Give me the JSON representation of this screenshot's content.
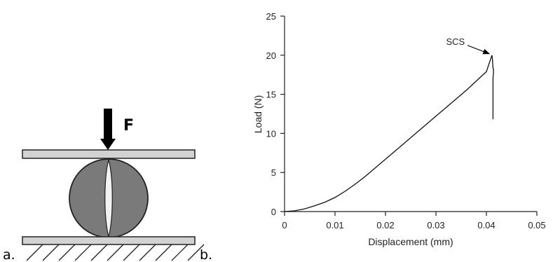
{
  "figure": {
    "panel_a_label": "a.",
    "panel_b_label": "b.",
    "force_label": "F"
  },
  "chart_data": {
    "type": "line",
    "xlabel": "Displacement (mm)",
    "ylabel": "Load (N)",
    "xlim": [
      0,
      0.05
    ],
    "ylim": [
      0,
      25
    ],
    "x_ticks": [
      0,
      0.01,
      0.02,
      0.03,
      0.04,
      0.05
    ],
    "x_tick_labels": [
      "0",
      "0.01",
      "0.02",
      "0.03",
      "0.04",
      "0.05"
    ],
    "y_ticks": [
      0,
      5,
      10,
      15,
      20,
      25
    ],
    "y_tick_labels": [
      "0",
      "5",
      "10",
      "15",
      "20",
      "25"
    ],
    "grid": false,
    "series": [
      {
        "x": [
          0,
          0.002,
          0.004,
          0.006,
          0.008,
          0.01,
          0.012,
          0.014,
          0.016,
          0.018,
          0.02,
          0.022,
          0.024,
          0.026,
          0.028,
          0.03,
          0.032,
          0.034,
          0.036,
          0.038,
          0.04,
          0.0411,
          0.0412,
          0.0413,
          0.0414,
          0.0414,
          0.0413,
          0.0413
        ],
        "y": [
          0,
          0.1,
          0.35,
          0.75,
          1.2,
          1.8,
          2.6,
          3.5,
          4.5,
          5.6,
          6.7,
          7.8,
          8.9,
          10.0,
          11.1,
          12.2,
          13.3,
          14.4,
          15.5,
          16.7,
          17.9,
          20.0,
          19.5,
          18.4,
          18.2,
          17.8,
          17.0,
          11.8
        ]
      }
    ],
    "annotations": [
      {
        "text": "SCS",
        "x": 0.041,
        "y": 20.0
      }
    ]
  }
}
